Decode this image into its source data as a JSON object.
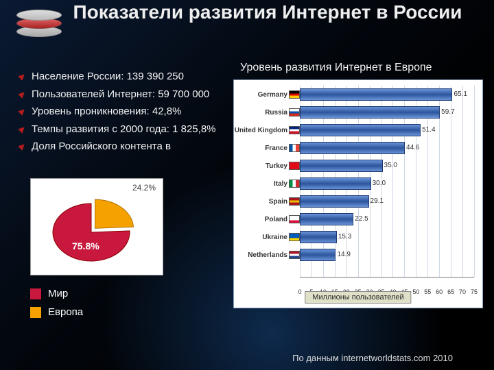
{
  "title": "Показатели развития Интернет в России",
  "bullets": [
    "Население России: 139 390 250",
    "Пользователей Интернет: 59 700 000",
    "Уровень проникновения: 42,8%",
    "Темпы развития с 2000 года: 1 825,8%",
    "Доля Российского контента в"
  ],
  "pie": {
    "slice_a": {
      "label": "24.2%",
      "value": 24.2,
      "color": "#f5a100"
    },
    "slice_b": {
      "label": "75.8%",
      "value": 75.8,
      "color": "#c9183e"
    },
    "background": "#ffffff"
  },
  "legend": {
    "a": {
      "label": "Мир",
      "color": "#c9183e"
    },
    "b": {
      "label": "Европа",
      "color": "#f5a100"
    }
  },
  "bars": {
    "title": "Уровень развития Интернет в Европе",
    "axis_caption": "Миллионы пользователей",
    "x_max": 75,
    "x_tick_step": 5,
    "ticks": [
      "0",
      "5",
      "10",
      "15",
      "20",
      "25",
      "30",
      "35",
      "40",
      "45",
      "50",
      "55",
      "60",
      "65",
      "70",
      "75"
    ],
    "bar_color": "#3b64ad",
    "grid_color": "#cfd8e6",
    "background": "#ffffff",
    "countries": [
      {
        "name": "Germany",
        "value": 65.1,
        "flag": [
          "#000000",
          "#dd0000",
          "#ffcc00"
        ]
      },
      {
        "name": "Russia",
        "value": 59.7,
        "flag": [
          "#ffffff",
          "#0052b4",
          "#d52b1e"
        ]
      },
      {
        "name": "United Kingdom",
        "value": 51.4,
        "flag": [
          "#00247d",
          "#ffffff",
          "#cf142b"
        ]
      },
      {
        "name": "France",
        "value": 44.6,
        "flag_v": [
          "#0055a4",
          "#ffffff",
          "#ef4135"
        ]
      },
      {
        "name": "Turkey",
        "value": 35.0,
        "flag": [
          "#e30a17",
          "#e30a17",
          "#e30a17"
        ]
      },
      {
        "name": "Italy",
        "value": 30.0,
        "flag_v": [
          "#009246",
          "#ffffff",
          "#ce2b37"
        ]
      },
      {
        "name": "Spain",
        "value": 29.1,
        "flag": [
          "#aa151b",
          "#f1bf00",
          "#aa151b"
        ]
      },
      {
        "name": "Poland",
        "value": 22.5,
        "flag": [
          "#ffffff",
          "#ffffff",
          "#dc143c"
        ]
      },
      {
        "name": "Ukraine",
        "value": 15.3,
        "flag": [
          "#005bbb",
          "#005bbb",
          "#ffd500"
        ]
      },
      {
        "name": "Netherlands",
        "value": 14.9,
        "flag": [
          "#ae1c28",
          "#ffffff",
          "#21468b"
        ]
      }
    ]
  },
  "source": "По данным internetworldstats.com  2010"
}
